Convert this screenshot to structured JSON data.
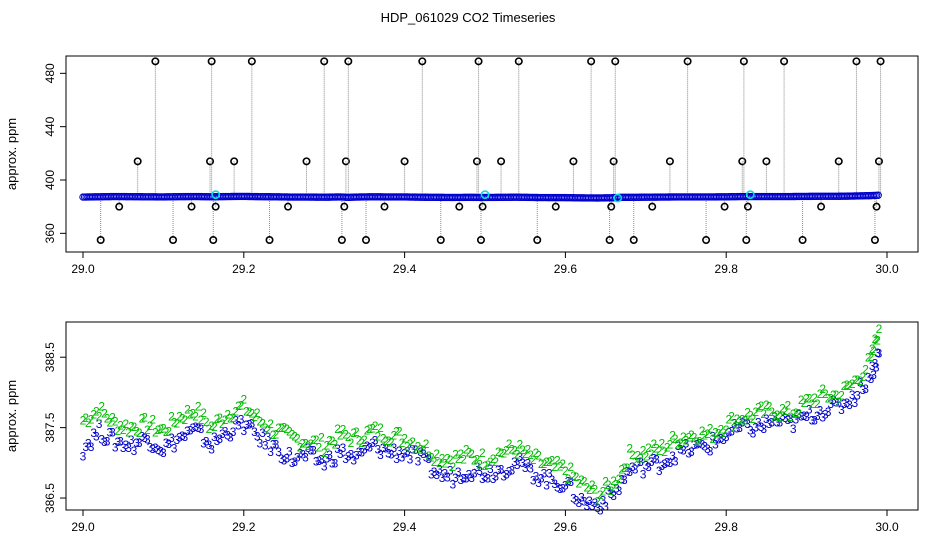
{
  "figure_title": "HDP_061029  CO2 Timeseries",
  "colors": {
    "black": "#000000",
    "blue": "#0000cc",
    "green": "#00bb00",
    "cyan": "#00e0e0",
    "grey": "#8a8a8a"
  },
  "chart_data": [
    {
      "type": "scatter",
      "title": "",
      "xlabel": "",
      "ylabel": "approx. ppm",
      "xlim": [
        29.0,
        30.0
      ],
      "ylim": [
        346,
        493
      ],
      "x_ticks": [
        "29.0",
        "29.2",
        "29.4",
        "29.6",
        "29.8",
        "30.0"
      ],
      "y_ticks": [
        "360",
        "400",
        "440",
        "480"
      ],
      "grid": false,
      "baseline_series": {
        "marker": "blue circles",
        "x": [
          29.0,
          29.02,
          29.04,
          29.06,
          29.08,
          29.1,
          29.12,
          29.14,
          29.16,
          29.18,
          29.2,
          29.22,
          29.24,
          29.26,
          29.28,
          29.3,
          29.32,
          29.33,
          29.34,
          29.36,
          29.38,
          29.4,
          29.42,
          29.44,
          29.46,
          29.48,
          29.5,
          29.52,
          29.54,
          29.56,
          29.58,
          29.6,
          29.62,
          29.64,
          29.66,
          29.67,
          29.68,
          29.7,
          29.72,
          29.74,
          29.76,
          29.78,
          29.8,
          29.82,
          29.84,
          29.86,
          29.88,
          29.9,
          29.92,
          29.94,
          29.96,
          29.98,
          29.99
        ],
        "y": [
          387.2,
          387.4,
          387.6,
          387.5,
          387.4,
          387.3,
          387.5,
          387.6,
          387.4,
          387.6,
          387.7,
          387.5,
          387.4,
          387.2,
          387.2,
          387.1,
          387.3,
          387.0,
          387.2,
          387.4,
          387.3,
          387.3,
          387.1,
          387.0,
          386.9,
          387.0,
          386.9,
          387.0,
          387.1,
          386.9,
          386.8,
          386.8,
          386.6,
          386.5,
          386.7,
          387.0,
          387.0,
          387.1,
          387.2,
          387.3,
          387.3,
          387.3,
          387.4,
          387.6,
          387.6,
          387.6,
          387.6,
          387.7,
          387.8,
          387.8,
          388.0,
          388.3,
          388.6
        ]
      },
      "highlight_points": {
        "marker": "cyan circles",
        "x": [
          29.165,
          29.5,
          29.665,
          29.83
        ],
        "y": [
          389.0,
          389.0,
          386.5,
          389.0
        ]
      },
      "outliers": {
        "marker": "black circles with grey drop lines",
        "x": [
          29.022,
          29.045,
          29.068,
          29.09,
          29.112,
          29.135,
          29.158,
          29.16,
          29.162,
          29.165,
          29.188,
          29.21,
          29.232,
          29.255,
          29.278,
          29.3,
          29.322,
          29.325,
          29.327,
          29.33,
          29.352,
          29.375,
          29.4,
          29.422,
          29.445,
          29.468,
          29.49,
          29.492,
          29.495,
          29.497,
          29.52,
          29.542,
          29.565,
          29.588,
          29.61,
          29.632,
          29.655,
          29.657,
          29.66,
          29.662,
          29.685,
          29.708,
          29.73,
          29.752,
          29.775,
          29.798,
          29.82,
          29.822,
          29.825,
          29.827,
          29.85,
          29.872,
          29.895,
          29.918,
          29.94,
          29.962,
          29.985,
          29.987,
          29.99,
          29.992
        ],
        "y": [
          355,
          380,
          414,
          489,
          355,
          380,
          414,
          489,
          355,
          380,
          414,
          489,
          355,
          380,
          414,
          489,
          355,
          380,
          414,
          489,
          355,
          380,
          414,
          489,
          355,
          380,
          414,
          489,
          355,
          380,
          414,
          489,
          355,
          380,
          414,
          489,
          355,
          380,
          414,
          489,
          355,
          380,
          414,
          489,
          355,
          380,
          414,
          489,
          355,
          380,
          414,
          489,
          355,
          380,
          414,
          489,
          355,
          380,
          414,
          489
        ]
      }
    },
    {
      "type": "scatter",
      "title": "",
      "xlabel": "",
      "ylabel": "approx. ppm",
      "xlim": [
        29.0,
        30.0
      ],
      "ylim": [
        386.33,
        389.0
      ],
      "x_ticks": [
        "29.0",
        "29.2",
        "29.4",
        "29.6",
        "29.8",
        "30.0"
      ],
      "y_ticks": [
        "386.5",
        "387.5",
        "388.5"
      ],
      "grid": false,
      "series": [
        {
          "marker_label": "2",
          "color": "#00bb00",
          "x": [
            29.0,
            29.02,
            29.04,
            29.06,
            29.08,
            29.1,
            29.12,
            29.14,
            29.16,
            29.18,
            29.2,
            29.22,
            29.24,
            29.26,
            29.28,
            29.3,
            29.32,
            29.34,
            29.36,
            29.38,
            29.4,
            29.42,
            29.44,
            29.46,
            29.48,
            29.5,
            29.52,
            29.54,
            29.56,
            29.58,
            29.6,
            29.62,
            29.64,
            29.66,
            29.68,
            29.7,
            29.72,
            29.74,
            29.76,
            29.78,
            29.8,
            29.82,
            29.84,
            29.86,
            29.88,
            29.9,
            29.92,
            29.94,
            29.96,
            29.98,
            29.99
          ],
          "y": [
            387.6,
            387.75,
            387.55,
            387.5,
            387.55,
            387.45,
            387.65,
            387.75,
            387.5,
            387.7,
            387.8,
            387.6,
            387.45,
            387.35,
            387.3,
            387.25,
            387.4,
            387.35,
            387.45,
            387.4,
            387.35,
            387.25,
            387.1,
            387.05,
            387.1,
            387.05,
            387.15,
            387.2,
            387.05,
            386.95,
            386.9,
            386.7,
            386.55,
            386.7,
            387.1,
            387.15,
            387.2,
            387.35,
            387.4,
            387.4,
            387.55,
            387.65,
            387.7,
            387.75,
            387.7,
            387.85,
            387.95,
            387.95,
            388.15,
            388.45,
            388.9
          ]
        },
        {
          "marker_label": "3",
          "color": "#0000cc",
          "x": [
            29.0,
            29.02,
            29.04,
            29.06,
            29.08,
            29.1,
            29.12,
            29.14,
            29.16,
            29.18,
            29.2,
            29.22,
            29.24,
            29.26,
            29.28,
            29.3,
            29.32,
            29.34,
            29.36,
            29.38,
            29.4,
            29.42,
            29.44,
            29.46,
            29.48,
            29.5,
            29.52,
            29.54,
            29.56,
            29.58,
            29.6,
            29.62,
            29.64,
            29.66,
            29.68,
            29.7,
            29.72,
            29.74,
            29.76,
            29.78,
            29.8,
            29.82,
            29.84,
            29.86,
            29.88,
            29.9,
            29.92,
            29.94,
            29.96,
            29.98,
            29.99
          ],
          "y": [
            387.2,
            387.45,
            387.3,
            387.25,
            387.35,
            387.2,
            387.35,
            387.45,
            387.25,
            387.45,
            387.55,
            387.35,
            387.2,
            387.05,
            387.1,
            387.0,
            387.15,
            387.05,
            387.25,
            387.15,
            387.15,
            387.05,
            386.85,
            386.8,
            386.9,
            386.85,
            386.9,
            387.0,
            386.85,
            386.75,
            386.7,
            386.45,
            386.4,
            386.55,
            386.9,
            386.95,
            387.0,
            387.15,
            387.2,
            387.25,
            387.4,
            387.5,
            387.5,
            387.6,
            387.55,
            387.65,
            387.75,
            387.8,
            387.95,
            388.25,
            388.55
          ]
        }
      ]
    }
  ]
}
